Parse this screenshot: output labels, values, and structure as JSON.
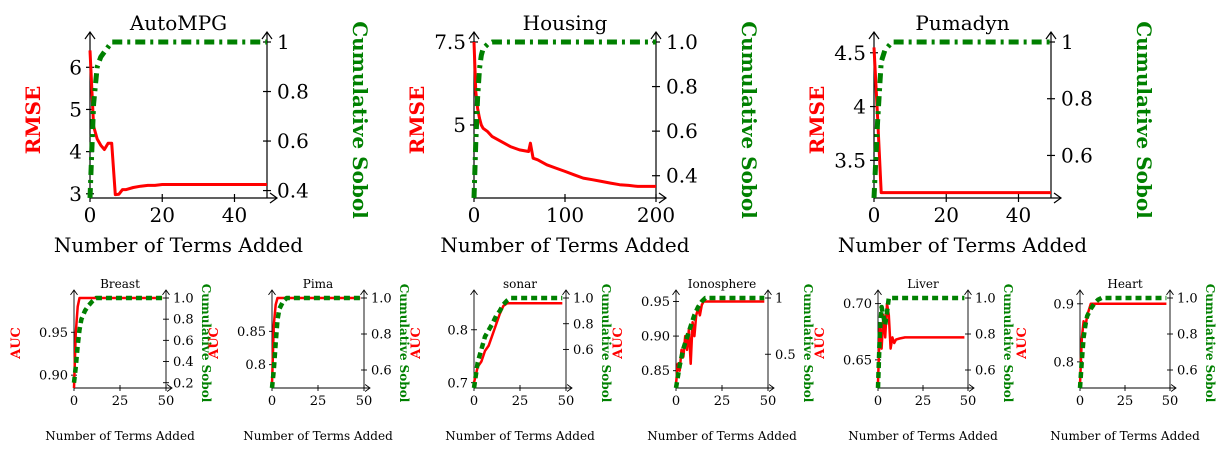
{
  "colors": {
    "rmse": "#ff0000",
    "sobol": "#008000",
    "axis": "#000000"
  },
  "chart_data": [
    {
      "type": "line",
      "title": "AutoMPG",
      "xlabel": "Number of Terms Added",
      "ylabel": "RMSE",
      "y2label": "Cumulative Sobol",
      "xlim": [
        0,
        49
      ],
      "xticks": [
        "0",
        "20",
        "40"
      ],
      "xtick_values": [
        0,
        20,
        40
      ],
      "ylim": [
        2.9,
        6.6
      ],
      "yticks": [
        "3",
        "4",
        "5",
        "6"
      ],
      "ytick_values": [
        3,
        4,
        5,
        6
      ],
      "y2lim": [
        0.37,
        1.0
      ],
      "y2ticks": [
        "0.4",
        "0.6",
        "0.8",
        "1"
      ],
      "y2tick_values": [
        0.4,
        0.6,
        0.8,
        1.0
      ],
      "series": [
        {
          "name": "RMSE",
          "axis": "left",
          "x": [
            0,
            1,
            2,
            3,
            4,
            5,
            6,
            7,
            8,
            9,
            10,
            12,
            14,
            16,
            18,
            20,
            22,
            30,
            40,
            49
          ],
          "y": [
            6.4,
            4.6,
            4.3,
            4.15,
            4.05,
            4.2,
            4.2,
            2.98,
            2.99,
            3.1,
            3.1,
            3.15,
            3.18,
            3.2,
            3.2,
            3.22,
            3.22,
            3.22,
            3.22,
            3.22
          ]
        },
        {
          "name": "Cumulative Sobol",
          "axis": "right",
          "x": [
            0,
            1,
            2,
            3,
            4,
            5,
            6,
            8,
            10,
            20,
            30,
            40,
            49
          ],
          "y": [
            0.37,
            0.75,
            0.9,
            0.94,
            0.96,
            0.98,
            1.0,
            1.0,
            1.0,
            1.0,
            1.0,
            1.0,
            1.0
          ]
        }
      ]
    },
    {
      "type": "line",
      "title": "Housing",
      "xlabel": "Number of Terms Added",
      "ylabel": "RMSE",
      "y2label": "Cumulative Sobol",
      "xlim": [
        0,
        200
      ],
      "xticks": [
        "0",
        "100",
        "200"
      ],
      "xtick_values": [
        0,
        100,
        200
      ],
      "ylim": [
        2.8,
        7.5
      ],
      "yticks": [
        "5",
        "7.5"
      ],
      "ytick_values": [
        5,
        7.5
      ],
      "y2lim": [
        0.3,
        1.0
      ],
      "y2ticks": [
        "0.4",
        "0.6",
        "0.8",
        "1.0"
      ],
      "y2tick_values": [
        0.4,
        0.6,
        0.8,
        1.0
      ],
      "series": [
        {
          "name": "RMSE",
          "axis": "left",
          "x": [
            0,
            2,
            4,
            6,
            8,
            10,
            15,
            20,
            30,
            40,
            50,
            60,
            62,
            65,
            70,
            80,
            90,
            100,
            110,
            120,
            130,
            140,
            150,
            160,
            170,
            180,
            190,
            200
          ],
          "y": [
            7.5,
            6.0,
            5.5,
            5.2,
            5.0,
            4.9,
            4.8,
            4.65,
            4.5,
            4.35,
            4.25,
            4.2,
            4.45,
            4.0,
            3.95,
            3.8,
            3.7,
            3.6,
            3.5,
            3.4,
            3.35,
            3.3,
            3.25,
            3.2,
            3.18,
            3.15,
            3.15,
            3.15
          ]
        },
        {
          "name": "Cumulative Sobol",
          "axis": "right",
          "x": [
            0,
            2,
            4,
            6,
            8,
            10,
            15,
            20,
            30,
            50,
            100,
            150,
            200
          ],
          "y": [
            0.3,
            0.55,
            0.75,
            0.88,
            0.94,
            0.97,
            0.99,
            1.0,
            1.0,
            1.0,
            1.0,
            1.0,
            1.0
          ]
        }
      ]
    },
    {
      "type": "line",
      "title": "Pumadyn",
      "xlabel": "Number of Terms Added",
      "ylabel": "RMSE",
      "y2label": "Cumulative Sobol",
      "xlim": [
        0,
        49
      ],
      "xticks": [
        "0",
        "20",
        "40"
      ],
      "xtick_values": [
        0,
        20,
        40
      ],
      "ylim": [
        3.15,
        4.6
      ],
      "yticks": [
        "3.5",
        "4",
        "4.5"
      ],
      "ytick_values": [
        3.5,
        4,
        4.5
      ],
      "y2lim": [
        0.45,
        1.0
      ],
      "y2ticks": [
        "0.6",
        "0.8",
        "1"
      ],
      "y2tick_values": [
        0.6,
        0.8,
        1.0
      ],
      "series": [
        {
          "name": "RMSE",
          "axis": "left",
          "x": [
            0,
            1,
            2,
            3,
            10,
            20,
            30,
            40,
            49
          ],
          "y": [
            4.55,
            3.9,
            3.2,
            3.2,
            3.2,
            3.2,
            3.2,
            3.2,
            3.2
          ]
        },
        {
          "name": "Cumulative Sobol",
          "axis": "right",
          "x": [
            0,
            1,
            2,
            3,
            5,
            10,
            20,
            30,
            40,
            49
          ],
          "y": [
            0.45,
            0.72,
            0.93,
            0.97,
            1.0,
            1.0,
            1.0,
            1.0,
            1.0,
            1.0
          ]
        }
      ]
    },
    {
      "type": "line",
      "title": "Breast",
      "xlabel": "Number of Terms Added",
      "ylabel": "AUC",
      "y2label": "Cumulative Sobol",
      "xlim": [
        0,
        50
      ],
      "xticks": [
        "0",
        "25",
        "50"
      ],
      "xtick_values": [
        0,
        25,
        50
      ],
      "ylim": [
        0.885,
        0.99
      ],
      "yticks": [
        "0.90",
        "0.95"
      ],
      "ytick_values": [
        0.9,
        0.95
      ],
      "y2lim": [
        0.15,
        1.0
      ],
      "y2ticks": [
        "0.2",
        "0.4",
        "0.6",
        "0.8",
        "1.0"
      ],
      "y2tick_values": [
        0.2,
        0.4,
        0.6,
        0.8,
        1.0
      ],
      "series": [
        {
          "name": "AUC",
          "axis": "left",
          "x": [
            0,
            1,
            2,
            3,
            5,
            10,
            20,
            30,
            40,
            48
          ],
          "y": [
            0.885,
            0.95,
            0.98,
            0.99,
            0.99,
            0.99,
            0.99,
            0.99,
            0.99,
            0.99
          ]
        },
        {
          "name": "Cumulative Sobol",
          "axis": "right",
          "x": [
            0,
            1,
            2,
            3,
            4,
            6,
            8,
            10,
            12,
            20,
            30,
            40,
            48
          ],
          "y": [
            0.2,
            0.35,
            0.55,
            0.7,
            0.8,
            0.88,
            0.93,
            0.97,
            1.0,
            1.0,
            1.0,
            1.0,
            1.0
          ]
        }
      ]
    },
    {
      "type": "line",
      "title": "Pima",
      "xlabel": "Number of Terms Added",
      "ylabel": "AUC",
      "y2label": "Cumulative Sobol",
      "xlim": [
        0,
        50
      ],
      "xticks": [
        "0",
        "25",
        "50"
      ],
      "xtick_values": [
        0,
        25,
        50
      ],
      "ylim": [
        0.765,
        0.9
      ],
      "yticks": [
        "0.8",
        "0.85"
      ],
      "ytick_values": [
        0.8,
        0.85
      ],
      "y2lim": [
        0.5,
        1.0
      ],
      "y2ticks": [
        "0.6",
        "0.8",
        "1.0"
      ],
      "y2tick_values": [
        0.6,
        0.8,
        1.0
      ],
      "series": [
        {
          "name": "AUC",
          "axis": "left",
          "x": [
            0,
            1,
            2,
            3,
            5,
            10,
            20,
            30,
            40,
            48
          ],
          "y": [
            0.77,
            0.86,
            0.89,
            0.9,
            0.9,
            0.9,
            0.9,
            0.9,
            0.9,
            0.9
          ]
        },
        {
          "name": "Cumulative Sobol",
          "axis": "right",
          "x": [
            0,
            1,
            2,
            3,
            4,
            6,
            8,
            10,
            20,
            30,
            40,
            48
          ],
          "y": [
            0.5,
            0.6,
            0.75,
            0.88,
            0.94,
            0.98,
            1.0,
            1.0,
            1.0,
            1.0,
            1.0,
            1.0
          ]
        }
      ]
    },
    {
      "type": "line",
      "title": "sonar",
      "xlabel": "Number of Terms Added",
      "ylabel": "AUC",
      "y2label": "Cumulative Sobol",
      "xlim": [
        0,
        50
      ],
      "xticks": [
        "0",
        "25",
        "50"
      ],
      "xtick_values": [
        0,
        25,
        50
      ],
      "ylim": [
        0.69,
        0.86
      ],
      "yticks": [
        "0.7",
        "0.8"
      ],
      "ytick_values": [
        0.7,
        0.8
      ],
      "y2lim": [
        0.3,
        1.0
      ],
      "y2ticks": [
        "0.6",
        "0.8",
        "1.0"
      ],
      "y2tick_values": [
        0.6,
        0.8,
        1.0
      ],
      "series": [
        {
          "name": "AUC",
          "axis": "left",
          "x": [
            0,
            2,
            4,
            6,
            8,
            10,
            12,
            14,
            16,
            18,
            20,
            30,
            40,
            48
          ],
          "y": [
            0.7,
            0.73,
            0.74,
            0.76,
            0.77,
            0.79,
            0.81,
            0.83,
            0.845,
            0.85,
            0.85,
            0.85,
            0.85,
            0.85
          ]
        },
        {
          "name": "Cumulative Sobol",
          "axis": "right",
          "x": [
            0,
            2,
            4,
            6,
            8,
            10,
            12,
            14,
            16,
            18,
            20,
            30,
            40,
            48
          ],
          "y": [
            0.3,
            0.5,
            0.6,
            0.7,
            0.75,
            0.8,
            0.86,
            0.9,
            0.95,
            0.98,
            1.0,
            1.0,
            1.0,
            1.0
          ]
        }
      ]
    },
    {
      "type": "line",
      "title": "Ionosphere",
      "xlabel": "Number of Terms Added",
      "ylabel": "AUC",
      "y2label": "Cumulative Sobol",
      "xlim": [
        0,
        50
      ],
      "xticks": [
        "0",
        "25",
        "50"
      ],
      "xtick_values": [
        0,
        25,
        50
      ],
      "ylim": [
        0.825,
        0.955
      ],
      "yticks": [
        "0.85",
        "0.90",
        "0.95"
      ],
      "ytick_values": [
        0.85,
        0.9,
        0.95
      ],
      "y2lim": [
        0.2,
        1.0
      ],
      "y2ticks": [
        "0.5",
        "1"
      ],
      "y2tick_values": [
        0.5,
        1.0
      ],
      "series": [
        {
          "name": "AUC",
          "axis": "left",
          "x": [
            0,
            1,
            2,
            3,
            4,
            5,
            6,
            7,
            8,
            9,
            10,
            11,
            12,
            13,
            14,
            15,
            16,
            20,
            30,
            40,
            48
          ],
          "y": [
            0.83,
            0.86,
            0.85,
            0.88,
            0.87,
            0.9,
            0.88,
            0.91,
            0.86,
            0.92,
            0.9,
            0.93,
            0.94,
            0.93,
            0.945,
            0.95,
            0.95,
            0.95,
            0.95,
            0.95,
            0.95
          ]
        },
        {
          "name": "Cumulative Sobol",
          "axis": "right",
          "x": [
            0,
            2,
            4,
            6,
            8,
            10,
            12,
            14,
            16,
            20,
            30,
            40,
            48
          ],
          "y": [
            0.2,
            0.4,
            0.55,
            0.65,
            0.75,
            0.85,
            0.92,
            0.97,
            1.0,
            1.0,
            1.0,
            1.0,
            1.0
          ]
        }
      ]
    },
    {
      "type": "line",
      "title": "Liver",
      "xlabel": "Number of Terms Added",
      "ylabel": "AUC",
      "y2label": "Cumulative Sobol",
      "xlim": [
        0,
        50
      ],
      "xticks": [
        "0",
        "25",
        "50"
      ],
      "xtick_values": [
        0,
        25,
        50
      ],
      "ylim": [
        0.625,
        0.705
      ],
      "yticks": [
        "0.65",
        "0.70"
      ],
      "ytick_values": [
        0.65,
        0.7
      ],
      "y2lim": [
        0.5,
        1.0
      ],
      "y2ticks": [
        "0.6",
        "0.8",
        "1.0"
      ],
      "y2tick_values": [
        0.6,
        0.8,
        1.0
      ],
      "series": [
        {
          "name": "AUC",
          "axis": "left",
          "x": [
            0,
            1,
            2,
            3,
            4,
            5,
            6,
            7,
            8,
            9,
            10,
            12,
            15,
            20,
            30,
            40,
            48
          ],
          "y": [
            0.63,
            0.68,
            0.66,
            0.69,
            0.67,
            0.7,
            0.69,
            0.66,
            0.67,
            0.665,
            0.668,
            0.669,
            0.67,
            0.67,
            0.67,
            0.67,
            0.67
          ]
        },
        {
          "name": "Cumulative Sobol",
          "axis": "right",
          "x": [
            0,
            1,
            2,
            3,
            4,
            5,
            6,
            8,
            10,
            20,
            30,
            40,
            48
          ],
          "y": [
            0.5,
            0.8,
            0.95,
            0.9,
            0.85,
            0.92,
            1.0,
            1.0,
            1.0,
            1.0,
            1.0,
            1.0,
            1.0
          ]
        }
      ]
    },
    {
      "type": "line",
      "title": "Heart",
      "xlabel": "Number of Terms Added",
      "ylabel": "AUC",
      "y2label": "Cumulative Sobol",
      "xlim": [
        0,
        50
      ],
      "xticks": [
        "0",
        "25",
        "50"
      ],
      "xtick_values": [
        0,
        25,
        50
      ],
      "ylim": [
        0.755,
        0.91
      ],
      "yticks": [
        "0.8",
        "0.9"
      ],
      "ytick_values": [
        0.8,
        0.9
      ],
      "y2lim": [
        0.5,
        1.0
      ],
      "y2ticks": [
        "0.6",
        "0.8",
        "1.0"
      ],
      "y2tick_values": [
        0.6,
        0.8,
        1.0
      ],
      "series": [
        {
          "name": "AUC",
          "axis": "left",
          "x": [
            0,
            1,
            2,
            3,
            4,
            5,
            6,
            8,
            10,
            20,
            30,
            40,
            48
          ],
          "y": [
            0.76,
            0.84,
            0.87,
            0.86,
            0.88,
            0.89,
            0.9,
            0.9,
            0.9,
            0.9,
            0.9,
            0.9,
            0.9
          ]
        },
        {
          "name": "Cumulative Sobol",
          "axis": "right",
          "x": [
            0,
            1,
            2,
            3,
            4,
            6,
            8,
            10,
            12,
            20,
            30,
            40,
            48
          ],
          "y": [
            0.5,
            0.65,
            0.78,
            0.85,
            0.9,
            0.94,
            0.97,
            0.99,
            1.0,
            1.0,
            1.0,
            1.0,
            1.0
          ]
        }
      ]
    }
  ]
}
